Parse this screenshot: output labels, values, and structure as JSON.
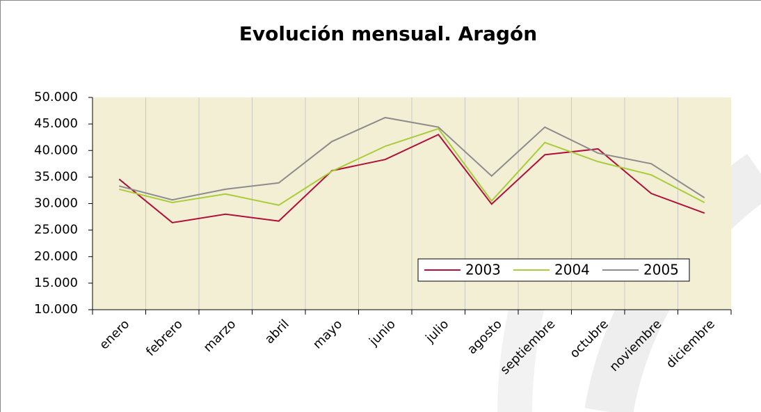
{
  "chart_data": {
    "type": "line",
    "title": "Evolución mensual. Aragón",
    "categories": [
      "enero",
      "febrero",
      "marzo",
      "abril",
      "mayo",
      "junio",
      "julio",
      "agosto",
      "septiembre",
      "octubre",
      "noviembre",
      "diciembre"
    ],
    "series": [
      {
        "name": "2003",
        "color": "#b0103a",
        "values": [
          34600,
          26400,
          28000,
          26700,
          36200,
          38300,
          43000,
          29900,
          39200,
          40300,
          31900,
          28200
        ]
      },
      {
        "name": "2004",
        "color": "#a8cc3a",
        "values": [
          32700,
          30200,
          31800,
          29700,
          36100,
          40800,
          44100,
          30500,
          41500,
          37900,
          35400,
          30200
        ]
      },
      {
        "name": "2005",
        "color": "#8c8c8c",
        "values": [
          33300,
          30700,
          32700,
          33900,
          41700,
          46200,
          44400,
          35200,
          44400,
          39500,
          37500,
          31100
        ]
      }
    ],
    "ylim": [
      10000,
      50000
    ],
    "yticks": [
      {
        "value": 10000,
        "label": "10.000"
      },
      {
        "value": 15000,
        "label": "15.000"
      },
      {
        "value": 20000,
        "label": "20.000"
      },
      {
        "value": 25000,
        "label": "25.000"
      },
      {
        "value": 30000,
        "label": "30.000"
      },
      {
        "value": 35000,
        "label": "35.000"
      },
      {
        "value": 40000,
        "label": "40.000"
      },
      {
        "value": 45000,
        "label": "45.000"
      },
      {
        "value": 50000,
        "label": "50.000"
      }
    ],
    "grid": true
  }
}
